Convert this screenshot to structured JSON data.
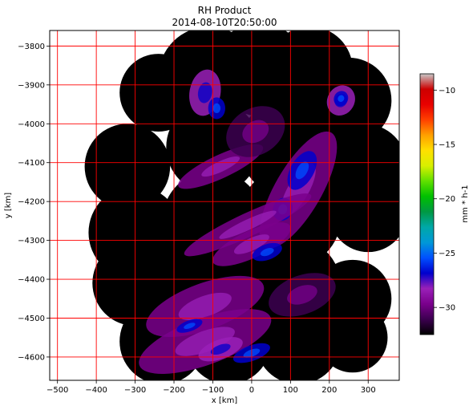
{
  "chart_data": {
    "type": "heatmap",
    "title": "RH Product",
    "subtitle": "2014-08-10T20:50:00",
    "xlabel": "x [km]",
    "ylabel": "y [km]",
    "xlim": [
      -520,
      380
    ],
    "ylim": [
      -4660,
      -3760
    ],
    "xticks": [
      -500,
      -400,
      -300,
      -200,
      -100,
      0,
      100,
      200,
      300
    ],
    "xtick_labels": [
      "−500",
      "−400",
      "−300",
      "−200",
      "−100",
      "0",
      "100",
      "200",
      "300"
    ],
    "yticks": [
      -3800,
      -3900,
      -4000,
      -4100,
      -4200,
      -4300,
      -4400,
      -4500,
      -4600
    ],
    "ytick_labels": [
      "−3800",
      "−3900",
      "−4000",
      "−4100",
      "−4200",
      "−4300",
      "−4400",
      "−4500",
      "−4600"
    ],
    "grid": true,
    "grid_color": "#ff0000",
    "no_data_color": "#000000",
    "colorbar": {
      "label": "mm * h-1",
      "range": [
        -32.5,
        -8.5
      ],
      "ticks": [
        -10,
        -15,
        -20,
        -25,
        -30
      ],
      "tick_labels": [
        "−10",
        "−15",
        "−20",
        "−25",
        "−30"
      ],
      "colormap": [
        "#000000",
        "#3c0050",
        "#7a008c",
        "#9a20b8",
        "#0000cc",
        "#0050ff",
        "#0098d8",
        "#00a8a8",
        "#009844",
        "#00c000",
        "#60e000",
        "#d8f000",
        "#ffe000",
        "#ffa000",
        "#ff4000",
        "#e80000",
        "#cc0000",
        "#c8c8c8"
      ]
    },
    "coverage_disks": [
      {
        "x": -240,
        "y": -3920,
        "r": 100
      },
      {
        "x": -110,
        "y": -3880,
        "r": 130
      },
      {
        "x": 20,
        "y": -3860,
        "r": 120
      },
      {
        "x": 150,
        "y": -3860,
        "r": 110
      },
      {
        "x": 250,
        "y": -3940,
        "r": 110
      },
      {
        "x": -320,
        "y": -4110,
        "r": 110
      },
      {
        "x": -100,
        "y": -4060,
        "r": 120
      },
      {
        "x": 100,
        "y": -4060,
        "r": 130
      },
      {
        "x": 290,
        "y": -4110,
        "r": 110
      },
      {
        "x": -300,
        "y": -4280,
        "r": 120
      },
      {
        "x": -100,
        "y": -4250,
        "r": 130
      },
      {
        "x": 100,
        "y": -4240,
        "r": 130
      },
      {
        "x": 300,
        "y": -4230,
        "r": 100
      },
      {
        "x": -300,
        "y": -4410,
        "r": 110
      },
      {
        "x": -100,
        "y": -4420,
        "r": 130
      },
      {
        "x": 100,
        "y": -4420,
        "r": 130
      },
      {
        "x": 260,
        "y": -4450,
        "r": 100
      },
      {
        "x": -230,
        "y": -4560,
        "r": 110
      },
      {
        "x": -60,
        "y": -4560,
        "r": 110
      },
      {
        "x": 120,
        "y": -4560,
        "r": 110
      },
      {
        "x": 260,
        "y": -4550,
        "r": 90
      }
    ],
    "precip_cells": [
      {
        "x": -120,
        "y": -3920,
        "rx": 40,
        "ry": 60,
        "rot": 10,
        "level": 3,
        "core": 4
      },
      {
        "x": -90,
        "y": -3960,
        "rx": 22,
        "ry": 28,
        "rot": 0,
        "level": 4,
        "core": 5
      },
      {
        "x": 230,
        "y": -3940,
        "rx": 35,
        "ry": 40,
        "rot": 30,
        "level": 3,
        "core": 4
      },
      {
        "x": 230,
        "y": -3935,
        "rx": 18,
        "ry": 20,
        "rot": 30,
        "level": 4,
        "core": 5
      },
      {
        "x": 120,
        "y": -4170,
        "rx": 60,
        "ry": 170,
        "rot": 30,
        "level": 2,
        "core": 3
      },
      {
        "x": 130,
        "y": -4120,
        "rx": 30,
        "ry": 55,
        "rot": 30,
        "level": 4,
        "core": 5
      },
      {
        "x": 80,
        "y": -4220,
        "rx": 25,
        "ry": 30,
        "rot": 20,
        "level": 4,
        "core": 5
      },
      {
        "x": -80,
        "y": -4110,
        "rx": 120,
        "ry": 30,
        "rot": -25,
        "level": 2,
        "core": 3
      },
      {
        "x": -10,
        "y": -4260,
        "rx": 180,
        "ry": 30,
        "rot": -25,
        "level": 2,
        "core": 3
      },
      {
        "x": 0,
        "y": -4310,
        "rx": 110,
        "ry": 35,
        "rot": -25,
        "level": 2,
        "core": 3
      },
      {
        "x": 40,
        "y": -4330,
        "rx": 40,
        "ry": 20,
        "rot": -20,
        "level": 4,
        "core": 5
      },
      {
        "x": -120,
        "y": -4470,
        "rx": 160,
        "ry": 60,
        "rot": -20,
        "level": 2,
        "core": 3
      },
      {
        "x": -120,
        "y": -4560,
        "rx": 180,
        "ry": 60,
        "rot": -20,
        "level": 2,
        "core": 3
      },
      {
        "x": -80,
        "y": -4580,
        "rx": 60,
        "ry": 25,
        "rot": -20,
        "level": 3,
        "core": 4
      },
      {
        "x": 0,
        "y": -4590,
        "rx": 50,
        "ry": 20,
        "rot": -20,
        "level": 4,
        "core": 5
      },
      {
        "x": -160,
        "y": -4520,
        "rx": 35,
        "ry": 14,
        "rot": -20,
        "level": 4,
        "core": 5
      },
      {
        "x": 10,
        "y": -4020,
        "rx": 80,
        "ry": 60,
        "rot": -30,
        "level": 1,
        "core": 2
      },
      {
        "x": 130,
        "y": -4440,
        "rx": 90,
        "ry": 50,
        "rot": -20,
        "level": 1,
        "core": 2
      }
    ]
  }
}
